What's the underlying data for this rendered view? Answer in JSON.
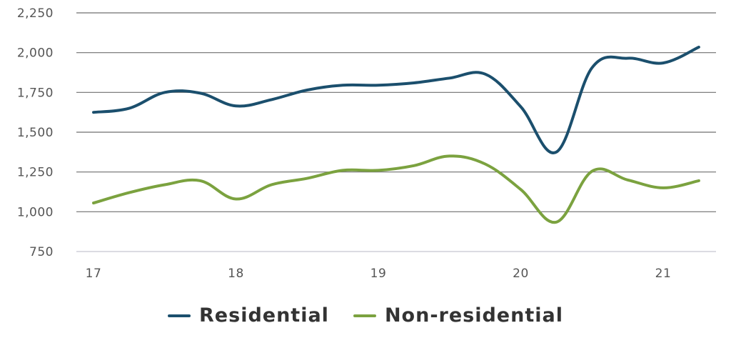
{
  "chart_data": {
    "type": "line",
    "title": "",
    "xlabel": "",
    "ylabel": "",
    "ylim": [
      750,
      2250
    ],
    "xlim": [
      17,
      21.25
    ],
    "y_ticks": [
      750,
      1000,
      1250,
      1500,
      1750,
      2000,
      2250
    ],
    "y_tick_labels": [
      "750",
      "1,000",
      "1,250",
      "1,500",
      "1,750",
      "2,000",
      "2,250"
    ],
    "x_ticks": [
      17,
      18,
      19,
      20,
      21
    ],
    "x_tick_labels": [
      "17",
      "18",
      "19",
      "20",
      "21"
    ],
    "grid": true,
    "legend_position": "bottom",
    "x": [
      17,
      17.25,
      17.5,
      17.75,
      18,
      18.25,
      18.5,
      18.75,
      19,
      19.25,
      19.5,
      19.75,
      20,
      20.25,
      20.5,
      20.75,
      21,
      21.25
    ],
    "series": [
      {
        "name": "Residential",
        "color": "#1b4f6d",
        "values": [
          1625,
          1650,
          1750,
          1745,
          1665,
          1705,
          1765,
          1795,
          1795,
          1810,
          1840,
          1865,
          1660,
          1375,
          1905,
          1965,
          1935,
          2035
        ]
      },
      {
        "name": "Non-residential",
        "color": "#7ba23f",
        "values": [
          1055,
          1120,
          1170,
          1195,
          1080,
          1170,
          1210,
          1260,
          1260,
          1290,
          1350,
          1300,
          1140,
          935,
          1255,
          1200,
          1150,
          1195
        ]
      }
    ]
  }
}
